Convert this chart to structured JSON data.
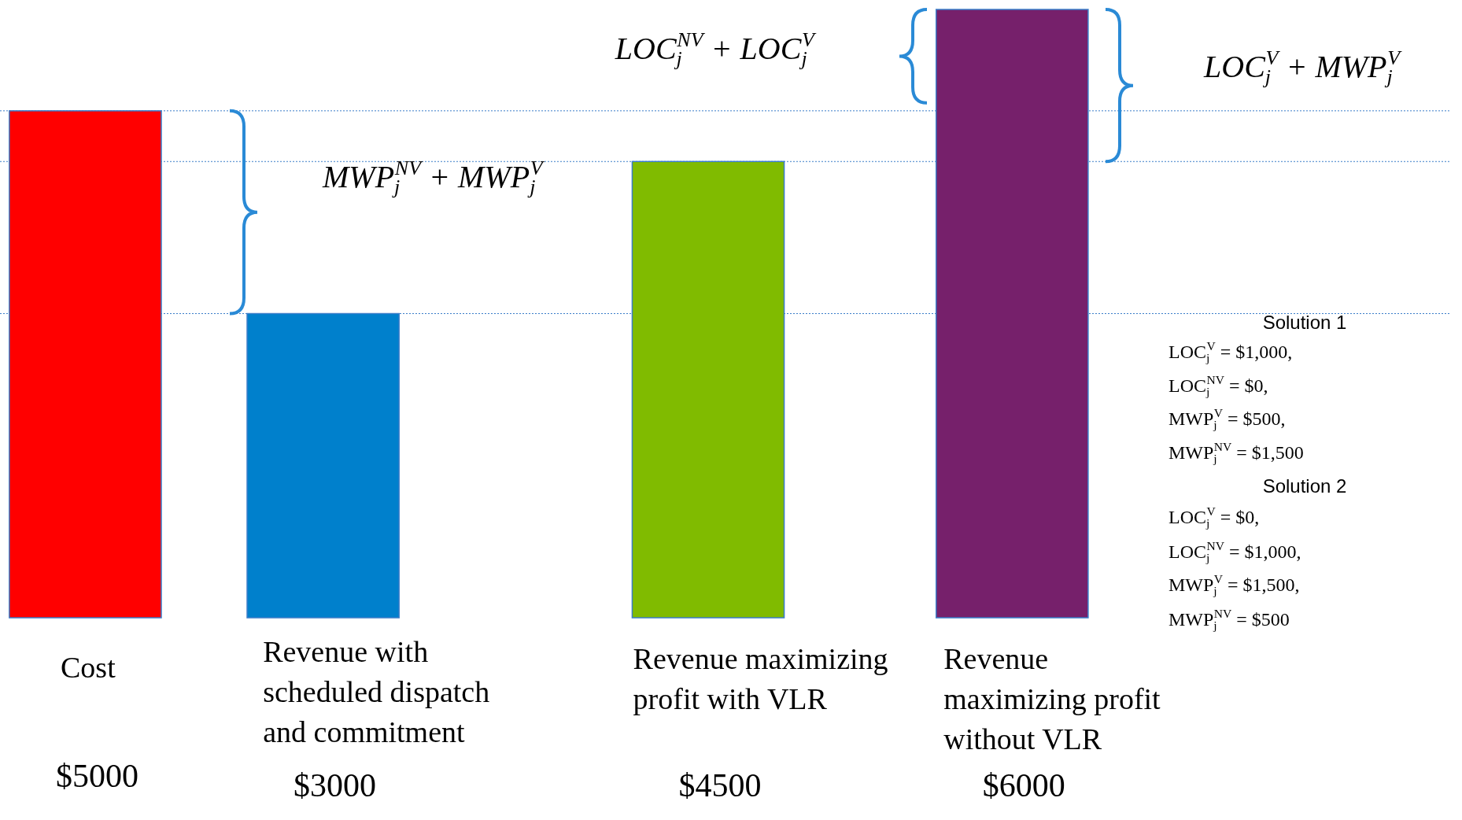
{
  "chart_data": {
    "type": "bar",
    "categories": [
      "Cost",
      "Revenue with scheduled dispatch and commitment",
      "Revenue maximizing profit with VLR",
      "Revenue maximizing profit without VLR"
    ],
    "values": [
      5000,
      3000,
      4500,
      6000
    ],
    "colors": [
      "#ff0000",
      "#0080cc",
      "#80bb00",
      "#76206b"
    ],
    "value_labels": [
      "$5000",
      "$3000",
      "$4500",
      "$6000"
    ],
    "ref_lines": [
      {
        "axis": "y",
        "value": 5000,
        "color": "#3a7dc9",
        "line_style": "dotted"
      },
      {
        "axis": "y",
        "value": 4500,
        "color": "#3a7dc9",
        "line_style": "dotted"
      },
      {
        "axis": "y",
        "value": 3000,
        "color": "#3a7dc9",
        "line_style": "dotted"
      }
    ],
    "annotations": [
      "MWP$_{j}$$^{NV}$ + MWP$_{j}$$^{V}$",
      "LOC$_{j}$$^{NV}$ + LOC$_{j}$$^{V}$",
      "LOC$_{j}$$^{V}$ + MWP$_{j}$$^{V}$",
      "Solution 1",
      "LOC$_{j}$$^{V}$ = $1,000,",
      "LOC$_{j}$$^{NV}$ = $0,",
      "MWP$_{j}$$^{V}$ = $500,",
      "MWP$_{j}$$^{NV}$ = $1,500",
      "Solution 2",
      "LOC$_{j}$$^{V}$ = $0,",
      "LOC$_{j}$$^{NV}$ = $1,000,",
      "MWP$_{j}$$^{V}$ = $1,500,",
      "MWP$_{j}$$^{NV}$ = $500"
    ]
  }
}
